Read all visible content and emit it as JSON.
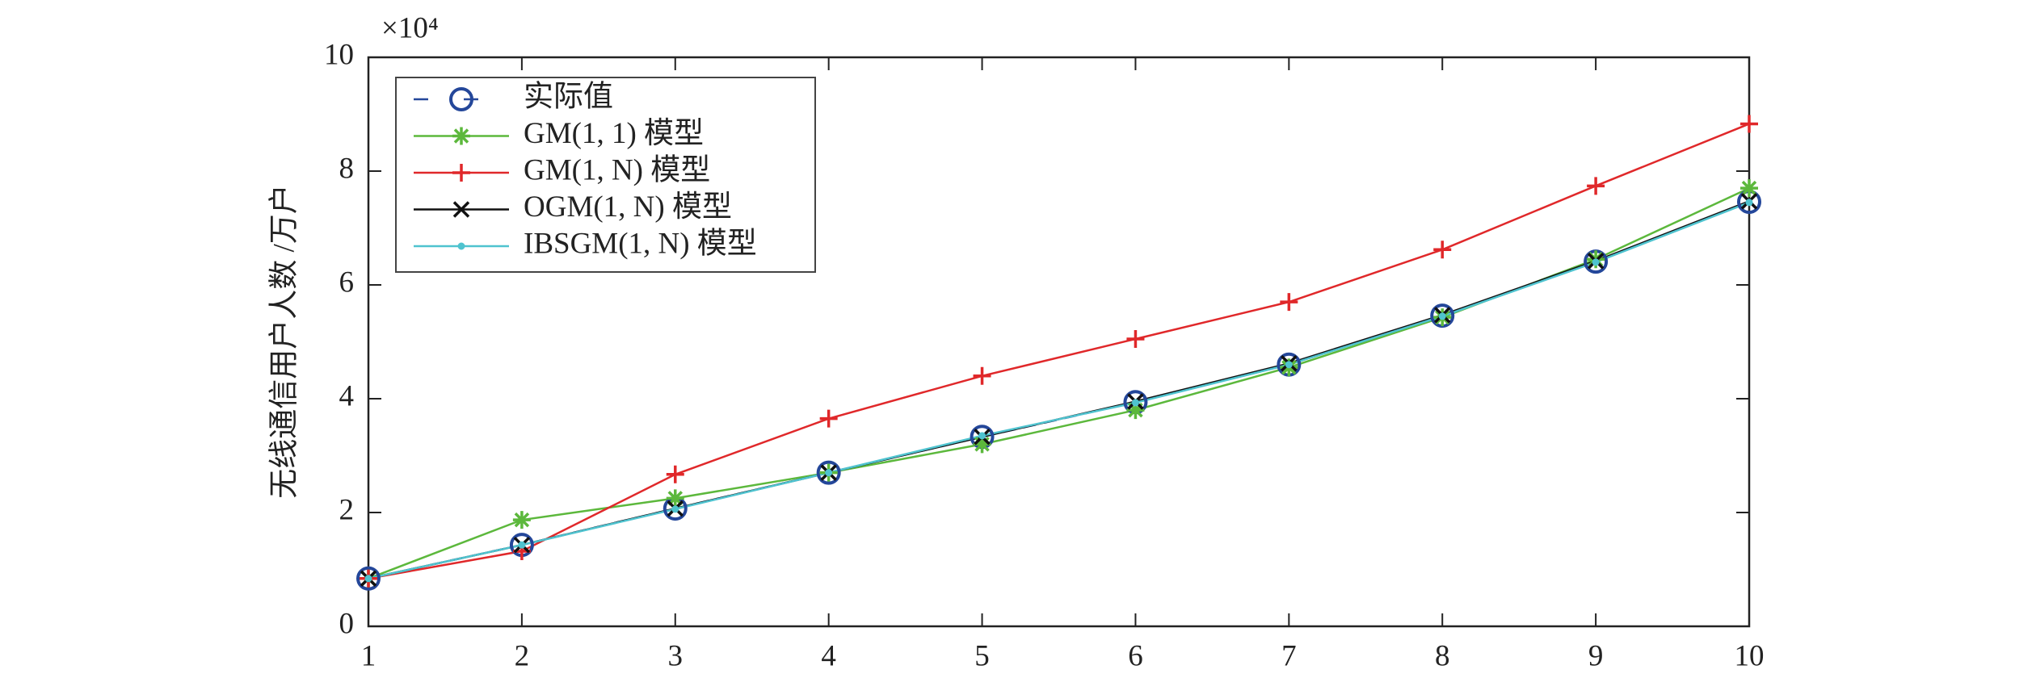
{
  "chart_data": {
    "type": "line",
    "y_label": "无线通信用户人数 /万户",
    "y_multiplier": "×10⁴",
    "x": [
      1,
      2,
      3,
      4,
      5,
      6,
      7,
      8,
      9,
      10
    ],
    "xlim": [
      1,
      10
    ],
    "xticks": [
      1,
      2,
      3,
      4,
      5,
      6,
      7,
      8,
      9,
      10
    ],
    "ylim": [
      0,
      10
    ],
    "yticks": [
      0,
      2,
      4,
      6,
      8,
      10
    ],
    "grid": false,
    "legend": "upper left",
    "series": [
      {
        "name": "实际值",
        "color": "#24479a",
        "marker": "o",
        "dashed": true,
        "values": [
          0.84,
          1.43,
          2.07,
          2.7,
          3.33,
          3.94,
          4.6,
          5.46,
          6.41,
          7.46
        ]
      },
      {
        "name": "GM(1, 1) 模型",
        "color": "#5cb83c",
        "marker": "*",
        "dashed": false,
        "values": [
          0.84,
          1.87,
          2.25,
          2.7,
          3.2,
          3.8,
          4.55,
          5.43,
          6.45,
          7.7
        ]
      },
      {
        "name": "GM(1, N) 模型",
        "color": "#e0282a",
        "marker": "+",
        "dashed": false,
        "values": [
          0.84,
          1.32,
          2.67,
          3.65,
          4.4,
          5.05,
          5.7,
          6.62,
          7.74,
          8.83
        ]
      },
      {
        "name": "OGM(1, N) 模型",
        "color": "#111111",
        "marker": "x",
        "dashed": false,
        "values": [
          0.84,
          1.43,
          2.07,
          2.7,
          3.33,
          3.95,
          4.62,
          5.47,
          6.42,
          7.47
        ]
      },
      {
        "name": "IBSGM(1, N) 模型",
        "color": "#4fc3cf",
        "marker": ".",
        "dashed": false,
        "values": [
          0.84,
          1.43,
          2.06,
          2.7,
          3.35,
          3.93,
          4.6,
          5.45,
          6.4,
          7.45
        ]
      }
    ]
  }
}
